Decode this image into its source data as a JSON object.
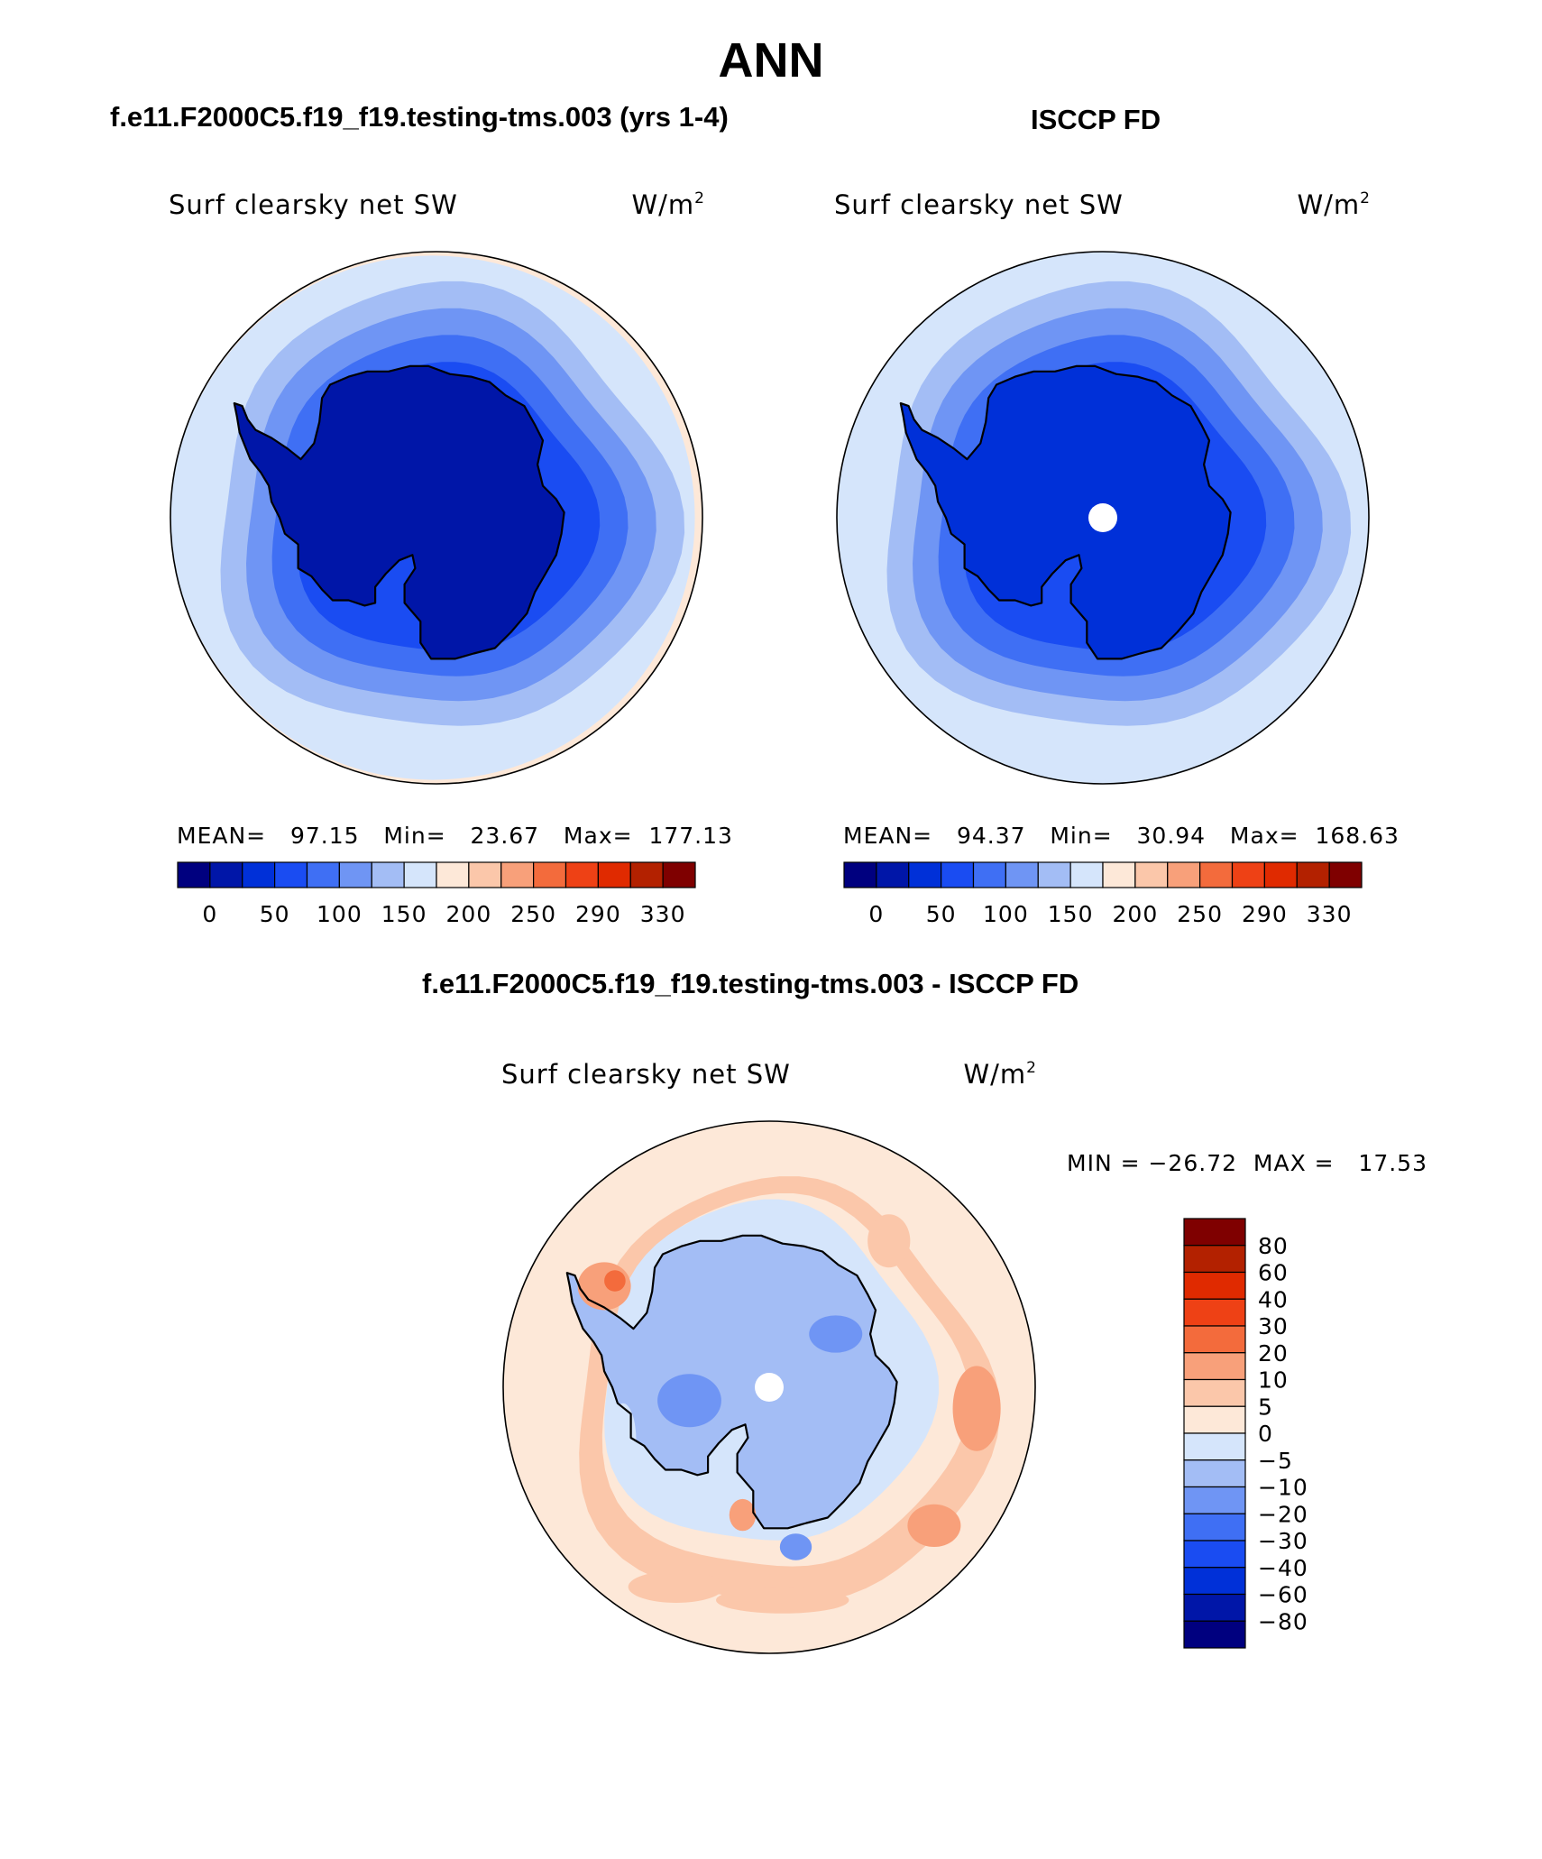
{
  "page": {
    "title": "ANN",
    "case_title": "f.e11.F2000C5.f19_f19.testing-tms.003 (yrs 1-4)",
    "obs_title": "ISCCP FD",
    "diff_title": "f.e11.F2000C5.f19_f19.testing-tms.003 - ISCCP FD"
  },
  "chart_data": [
    {
      "type": "heatmap",
      "projection": "south-polar-stereographic",
      "panel": "model",
      "title": "f.e11.F2000C5.f19_f19.testing-tms.003 (yrs 1-4)",
      "variable_label": "Surf clearsky net SW",
      "units_base": "W/m",
      "units_exp": "2",
      "stats_text": "MEAN=   97.15   Min=   23.67   Max=  177.13",
      "stats": {
        "mean": 97.15,
        "min": 23.67,
        "max": 177.13
      },
      "colorbar_labels": [
        "0",
        "50",
        "100",
        "150",
        "200",
        "250",
        "290",
        "330"
      ],
      "colorbar_colors": [
        "#00007f",
        "#0016a8",
        "#0030d8",
        "#1a4cf2",
        "#3f6ff4",
        "#6f95f4",
        "#a3bdf5",
        "#d5e5fb",
        "#fde8d8",
        "#fbc7aa",
        "#f8a07a",
        "#f36b3c",
        "#ee4115",
        "#e02a00",
        "#b32100",
        "#7f0000"
      ],
      "contour_levels": [
        0,
        25,
        50,
        75,
        100,
        125,
        150,
        175,
        200,
        225,
        250,
        270,
        290,
        310,
        330
      ]
    },
    {
      "type": "heatmap",
      "projection": "south-polar-stereographic",
      "panel": "obs",
      "title": "ISCCP FD",
      "variable_label": "Surf clearsky net SW",
      "units_base": "W/m",
      "units_exp": "2",
      "stats_text": "MEAN=   94.37   Min=   30.94   Max=  168.63",
      "stats": {
        "mean": 94.37,
        "min": 30.94,
        "max": 168.63
      },
      "colorbar_labels": [
        "0",
        "50",
        "100",
        "150",
        "200",
        "250",
        "290",
        "330"
      ],
      "colorbar_colors": [
        "#00007f",
        "#0016a8",
        "#0030d8",
        "#1a4cf2",
        "#3f6ff4",
        "#6f95f4",
        "#a3bdf5",
        "#d5e5fb",
        "#fde8d8",
        "#fbc7aa",
        "#f8a07a",
        "#f36b3c",
        "#ee4115",
        "#e02a00",
        "#b32100",
        "#7f0000"
      ],
      "contour_levels": [
        0,
        25,
        50,
        75,
        100,
        125,
        150,
        175,
        200,
        225,
        250,
        270,
        290,
        310,
        330
      ]
    },
    {
      "type": "heatmap",
      "projection": "south-polar-stereographic",
      "panel": "difference",
      "title": "f.e11.F2000C5.f19_f19.testing-tms.003 - ISCCP FD",
      "variable_label": "Surf clearsky net SW",
      "units_base": "W/m",
      "units_exp": "2",
      "stats_text": "MIN = −26.72  MAX =   17.53",
      "stats": {
        "min": -26.72,
        "max": 17.53
      },
      "colorbar_labels": [
        "80",
        "60",
        "40",
        "30",
        "20",
        "10",
        "5",
        "0",
        "−5",
        "−10",
        "−20",
        "−30",
        "−40",
        "−60",
        "−80"
      ],
      "colorbar_colors": [
        "#7f0000",
        "#b32100",
        "#e02a00",
        "#ee4115",
        "#f36b3c",
        "#f8a07a",
        "#fbc7aa",
        "#fde8d8",
        "#d5e5fb",
        "#a3bdf5",
        "#6f95f4",
        "#3f6ff4",
        "#1a4cf2",
        "#0030d8",
        "#0016a8",
        "#00007f"
      ],
      "contour_levels": [
        80,
        60,
        40,
        30,
        20,
        10,
        5,
        0,
        -5,
        -10,
        -20,
        -30,
        -40,
        -60,
        -80
      ]
    }
  ]
}
